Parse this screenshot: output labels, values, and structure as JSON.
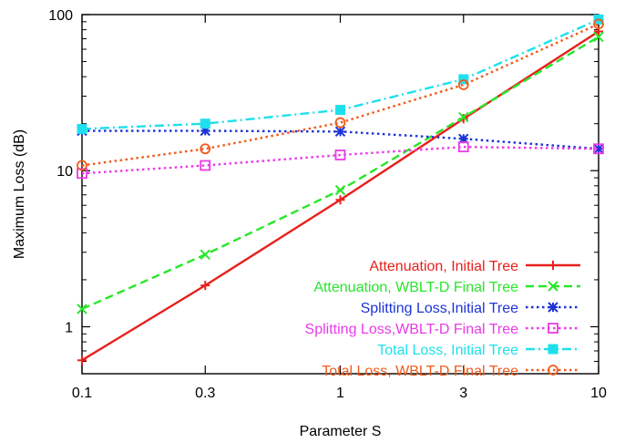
{
  "chart_data": {
    "type": "line",
    "xlabel": "Parameter S",
    "ylabel": "Maximum Loss (dB)",
    "xscale": "log",
    "yscale": "log",
    "xlim": [
      0.1,
      10
    ],
    "ylim": [
      0.5,
      100
    ],
    "x_ticks": [
      0.1,
      0.3,
      1,
      3,
      10
    ],
    "x_tick_labels": [
      "0.1",
      "0.3",
      "1",
      "3",
      "10"
    ],
    "y_ticks": [
      1,
      10,
      100
    ],
    "y_tick_labels": [
      "1",
      "10",
      "100"
    ],
    "grid": false,
    "legend_position": "bottom-right",
    "x": [
      0.1,
      0.3,
      1,
      3,
      10
    ],
    "series": [
      {
        "name": "Attenuation, Initial Tree",
        "color": "#e8201c",
        "dash": "solid",
        "marker": "plus",
        "values": [
          0.61,
          1.84,
          6.5,
          21.5,
          78
        ]
      },
      {
        "name": "Attenuation, WBLT-D Final Tree",
        "color": "#29e62b",
        "dash": "dashed",
        "marker": "x",
        "values": [
          1.3,
          2.9,
          7.5,
          22.0,
          72
        ]
      },
      {
        "name": "Splitting Loss,Initial Tree",
        "color": "#1d33d8",
        "dash": "dotted",
        "marker": "star",
        "values": [
          18.0,
          18.0,
          17.8,
          16.0,
          13.8
        ]
      },
      {
        "name": "Splitting Loss,WBLT-D Final Tree",
        "color": "#ea3ae8",
        "dash": "dotted",
        "marker": "square",
        "values": [
          9.6,
          10.8,
          12.6,
          14.2,
          13.8
        ]
      },
      {
        "name": "Total Loss, Initial Tree",
        "color": "#1ee0ec",
        "dash": "dashdot",
        "marker": "filled-square",
        "values": [
          18.5,
          20.0,
          24.5,
          38.5,
          93
        ]
      },
      {
        "name": "Total Loss, WBLT-D Final Tree",
        "color": "#f05a1a",
        "dash": "dotted",
        "marker": "circle",
        "values": [
          10.8,
          13.8,
          20.3,
          35.5,
          87
        ]
      }
    ]
  }
}
